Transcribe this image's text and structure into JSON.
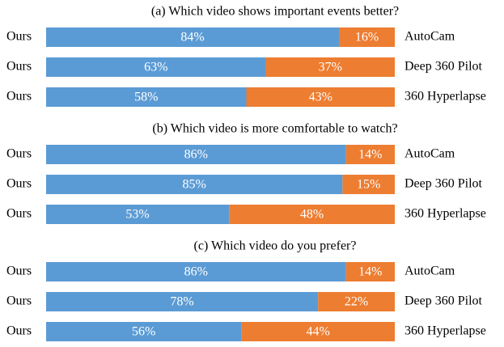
{
  "chart_data": [
    {
      "type": "bar",
      "title": "(a) Which video shows important events better?",
      "categories": [
        "AutoCam",
        "Deep 360 Pilot",
        "360 Hyperlapse"
      ],
      "series": [
        {
          "name": "Ours",
          "color": "#5b9bd5",
          "values": [
            84,
            63,
            58
          ],
          "value_labels": [
            "84%",
            "63%",
            "58%"
          ]
        },
        {
          "color": "#ed7d31",
          "values": [
            16,
            37,
            43
          ],
          "value_labels": [
            "16%",
            "37%",
            "43%"
          ]
        }
      ]
    },
    {
      "type": "bar",
      "title": "(b) Which video is more comfortable to watch?",
      "categories": [
        "AutoCam",
        "Deep 360 Pilot",
        "360 Hyperlapse"
      ],
      "series": [
        {
          "name": "Ours",
          "color": "#5b9bd5",
          "values": [
            86,
            85,
            53
          ],
          "value_labels": [
            "86%",
            "85%",
            "53%"
          ]
        },
        {
          "color": "#ed7d31",
          "values": [
            14,
            15,
            48
          ],
          "value_labels": [
            "14%",
            "15%",
            "48%"
          ]
        }
      ]
    },
    {
      "type": "bar",
      "title": "(c) Which video do you prefer?",
      "categories": [
        "AutoCam",
        "Deep 360 Pilot",
        "360 Hyperlapse"
      ],
      "series": [
        {
          "name": "Ours",
          "color": "#5b9bd5",
          "values": [
            86,
            78,
            56
          ],
          "value_labels": [
            "86%",
            "78%",
            "56%"
          ]
        },
        {
          "color": "#ed7d31",
          "values": [
            14,
            22,
            44
          ],
          "value_labels": [
            "14%",
            "22%",
            "44%"
          ]
        }
      ]
    }
  ]
}
